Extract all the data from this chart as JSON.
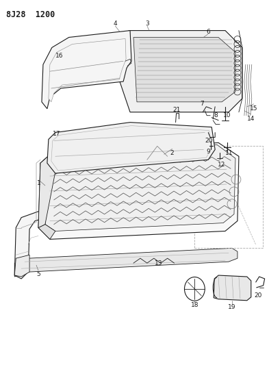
{
  "title": "8J28 1200",
  "bg_color": "#ffffff",
  "line_color": "#1a1a1a",
  "fig_width": 3.93,
  "fig_height": 5.33,
  "dpi": 100
}
